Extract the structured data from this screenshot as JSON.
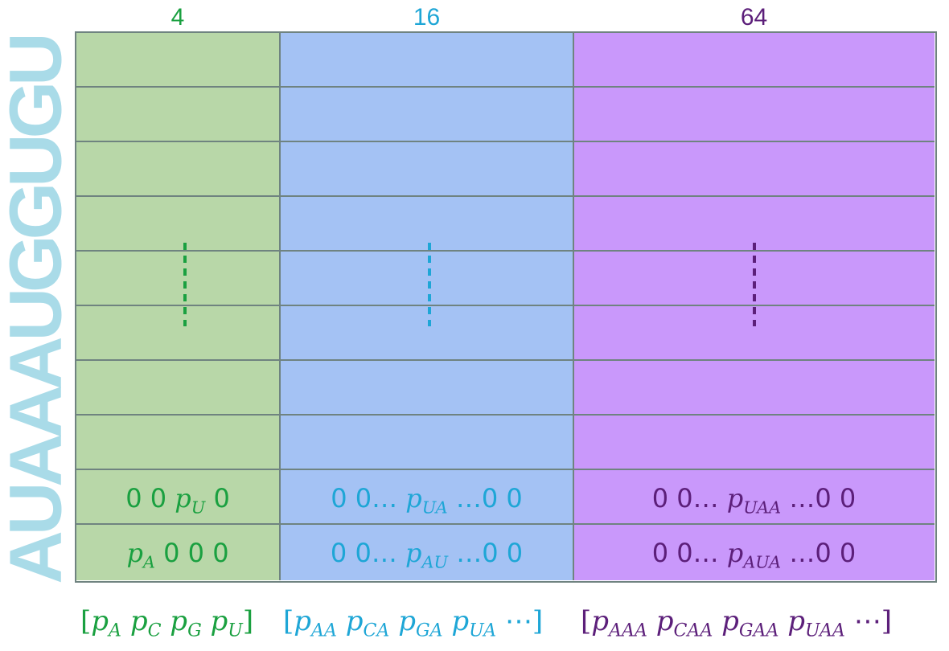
{
  "columns": [
    {
      "header": "4",
      "color": "#1aa040",
      "fill": "#b8d7a8"
    },
    {
      "header": "16",
      "color": "#1ea6d6",
      "fill": "#a4c2f4"
    },
    {
      "header": "64",
      "color": "#5c1f7a",
      "fill": "#c998fb"
    }
  ],
  "side_label": "AUAAAUGGUGU",
  "rows": {
    "row1": {
      "green": {
        "pre": "0 0 ",
        "var": "p",
        "sub": "U",
        "post": " 0"
      },
      "blue": {
        "pre": "0 0… ",
        "var": "p",
        "sub": "UA",
        "post": " …0 0"
      },
      "purple": {
        "pre": "0 0… ",
        "var": "p",
        "sub": "UAA",
        "post": " …0 0"
      }
    },
    "row2": {
      "green": {
        "pre": "",
        "var": "p",
        "sub": "A",
        "post": " 0 0 0"
      },
      "blue": {
        "pre": "0 0… ",
        "var": "p",
        "sub": "AU",
        "post": " …0 0"
      },
      "purple": {
        "pre": "0 0… ",
        "var": "p",
        "sub": "AUA",
        "post": " …0 0"
      }
    }
  },
  "vectors": {
    "green": {
      "open": "[",
      "terms": [
        "A",
        "C",
        "G",
        "U"
      ],
      "close": "]"
    },
    "blue": {
      "open": "[",
      "terms": [
        "AA",
        "CA",
        "GA",
        "UA"
      ],
      "tail": "⋯",
      "close": "]"
    },
    "purple": {
      "open": "[",
      "terms": [
        "AAA",
        "CAA",
        "GAA",
        "UAA"
      ],
      "tail": "⋯",
      "close": "]"
    }
  }
}
